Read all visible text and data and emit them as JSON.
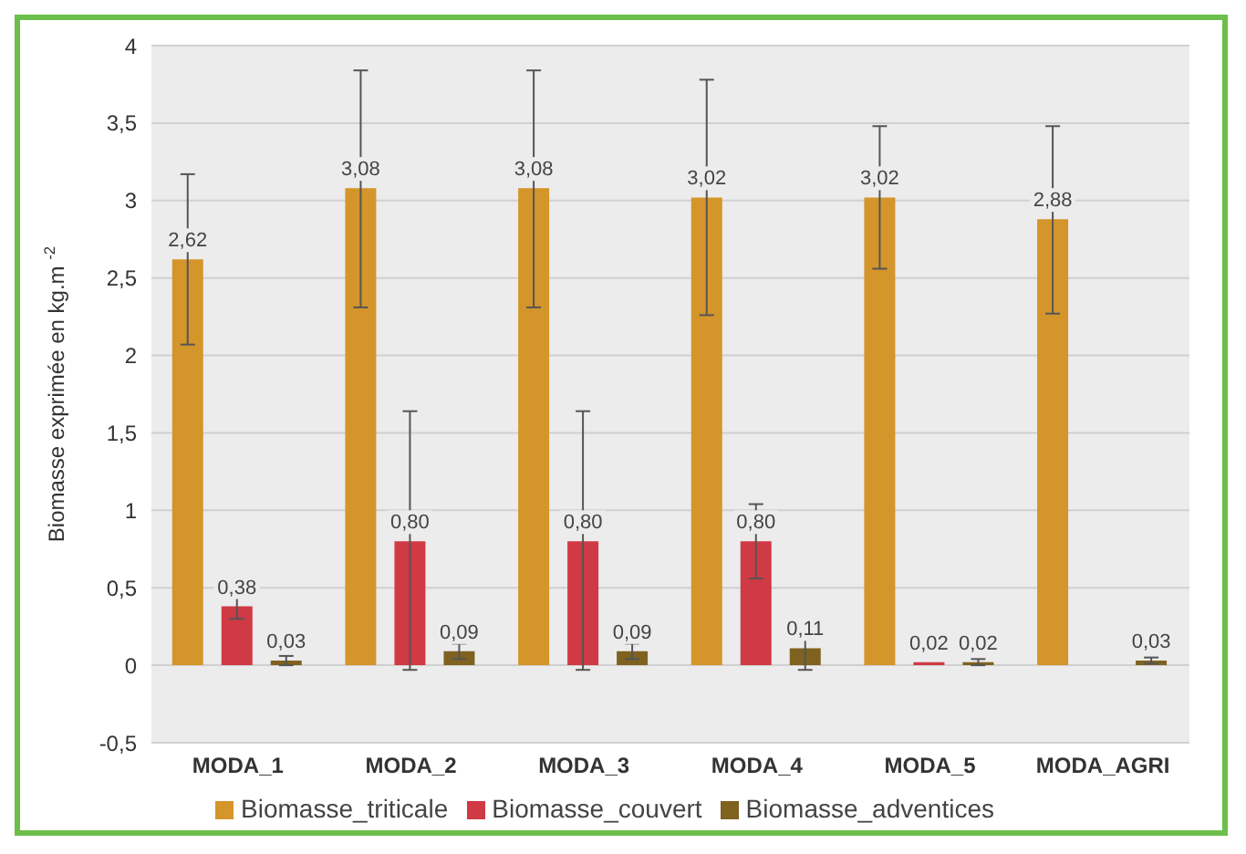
{
  "chart_data": {
    "type": "bar",
    "ylabel": "Biomasse exprimée en kg.m $^{-2}$",
    "categories": [
      "MODA_1",
      "MODA_2",
      "MODA_3",
      "MODA_4",
      "MODA_5",
      "MODA_AGRI"
    ],
    "series": [
      {
        "name": "Biomasse_triticale",
        "color": "#d4952a",
        "values": [
          2.62,
          3.08,
          3.08,
          3.02,
          3.02,
          2.88
        ],
        "value_labels": [
          "2,62",
          "3,08",
          "3,08",
          "3,02",
          "3,02",
          "2,88"
        ],
        "errors": [
          [
            2.07,
            3.17
          ],
          [
            2.31,
            3.84
          ],
          [
            2.31,
            3.84
          ],
          [
            2.26,
            3.78
          ],
          [
            2.56,
            3.48
          ],
          [
            2.27,
            3.48
          ]
        ]
      },
      {
        "name": "Biomasse_couvert",
        "color": "#d03a44",
        "values": [
          0.38,
          0.8,
          0.8,
          0.8,
          0.02,
          null
        ],
        "value_labels": [
          "0,38",
          "0,80",
          "0,80",
          "0,80",
          "0,02",
          null
        ],
        "errors": [
          [
            0.3,
            0.46
          ],
          [
            -0.03,
            1.64
          ],
          [
            -0.03,
            1.64
          ],
          [
            0.56,
            1.04
          ],
          null,
          null
        ]
      },
      {
        "name": "Biomasse_adventices",
        "color": "#7f6220",
        "values": [
          0.03,
          0.09,
          0.09,
          0.11,
          0.02,
          0.03
        ],
        "value_labels": [
          "0,03",
          "0,09",
          "0,09",
          "0,11",
          "0,02",
          "0,03"
        ],
        "errors": [
          [
            0.0,
            0.06
          ],
          [
            0.04,
            0.14
          ],
          [
            0.04,
            0.14
          ],
          [
            -0.03,
            0.25
          ],
          [
            0.0,
            0.04
          ],
          [
            0.01,
            0.05
          ]
        ]
      }
    ],
    "ylim": [
      -0.5,
      4
    ],
    "yticks": [
      {
        "value": -0.5,
        "label": "-0,5"
      },
      0,
      {
        "value": 0.5,
        "label": "0,5"
      },
      1,
      {
        "value": 1.5,
        "label": "1,5"
      },
      2,
      {
        "value": 2.5,
        "label": "2,5"
      },
      3,
      {
        "value": 3.5,
        "label": "3,5"
      },
      4
    ],
    "grid": "y",
    "legend": "bottom"
  }
}
